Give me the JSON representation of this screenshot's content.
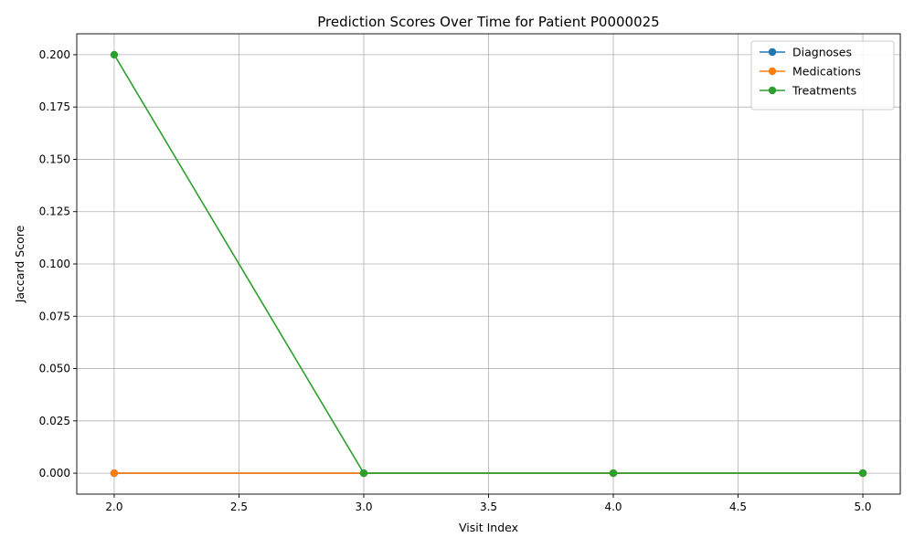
{
  "chart_data": {
    "type": "line",
    "title": "Prediction Scores Over Time for Patient P0000025",
    "xlabel": "Visit Index",
    "ylabel": "Jaccard Score",
    "xlim": [
      1.85,
      5.15
    ],
    "ylim": [
      -0.01,
      0.21
    ],
    "x_ticks": [
      2.0,
      2.5,
      3.0,
      3.5,
      4.0,
      4.5,
      5.0
    ],
    "x_tick_labels": [
      "2.0",
      "2.5",
      "3.0",
      "3.5",
      "4.0",
      "4.5",
      "5.0"
    ],
    "y_ticks": [
      0.0,
      0.025,
      0.05,
      0.075,
      0.1,
      0.125,
      0.15,
      0.175,
      0.2
    ],
    "y_tick_labels": [
      "0.000",
      "0.025",
      "0.050",
      "0.075",
      "0.100",
      "0.125",
      "0.150",
      "0.175",
      "0.200"
    ],
    "grid": true,
    "legend_position": "top-right",
    "x": [
      2,
      3,
      4,
      5
    ],
    "series": [
      {
        "name": "Diagnoses",
        "color": "#1f77b4",
        "values": [
          0,
          0,
          0,
          0
        ]
      },
      {
        "name": "Medications",
        "color": "#ff7f0e",
        "values": [
          0,
          0,
          0,
          0
        ]
      },
      {
        "name": "Treatments",
        "color": "#2ca02c",
        "values": [
          0.2,
          0,
          0,
          0
        ]
      }
    ]
  }
}
